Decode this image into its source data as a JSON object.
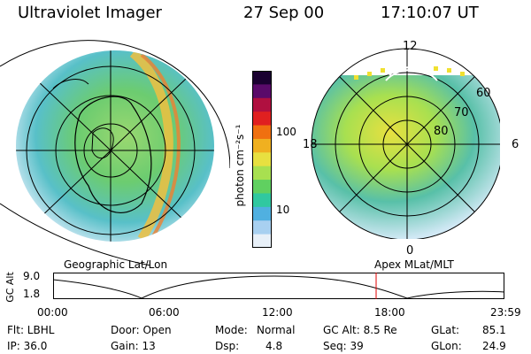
{
  "header": {
    "title": "Ultraviolet Imager",
    "date": "27 Sep 00",
    "time": "17:10:07 UT"
  },
  "left_panel": {
    "caption": "Geographic Lat/Lon"
  },
  "right_panel": {
    "caption": "Apex MLat/MLT",
    "mlt_labels": {
      "top": "12",
      "left": "18",
      "right": "6",
      "bottom": "0"
    },
    "lat_labels": [
      "60",
      "70",
      "80"
    ]
  },
  "colorbar": {
    "label": "photon cm⁻²s⁻¹",
    "ticks": [
      "100",
      "10"
    ],
    "scale": "log",
    "colors": [
      "#1a0030",
      "#5a0a6a",
      "#b01040",
      "#e02020",
      "#f07010",
      "#f0b020",
      "#e8e040",
      "#a8e050",
      "#60d060",
      "#30c8a0",
      "#50b0e0",
      "#a8d0f0",
      "#e8f0f8"
    ]
  },
  "timeline": {
    "ylabel": "GC Alt",
    "y_ticks": [
      "9.0",
      "1.8"
    ],
    "x_ticks": [
      "00:00",
      "06:00",
      "12:00",
      "18:00",
      "23:59"
    ],
    "cursor_time": "17:10",
    "cursor_color": "#e00000"
  },
  "footer": {
    "flt": "Flt: LBHL",
    "ip": "IP: 36.0",
    "door": "Door: Open",
    "gain": "Gain: 13",
    "mode_label": "Mode:",
    "mode_value": "Normal",
    "dsp_label": "Dsp:",
    "dsp_value": "4.8",
    "gcalt": "GC Alt: 8.5 Re",
    "seq": "Seq: 39",
    "glat_label": "GLat:",
    "glat_value": "85.1",
    "glon_label": "GLon:",
    "glon_value": "24.9"
  }
}
